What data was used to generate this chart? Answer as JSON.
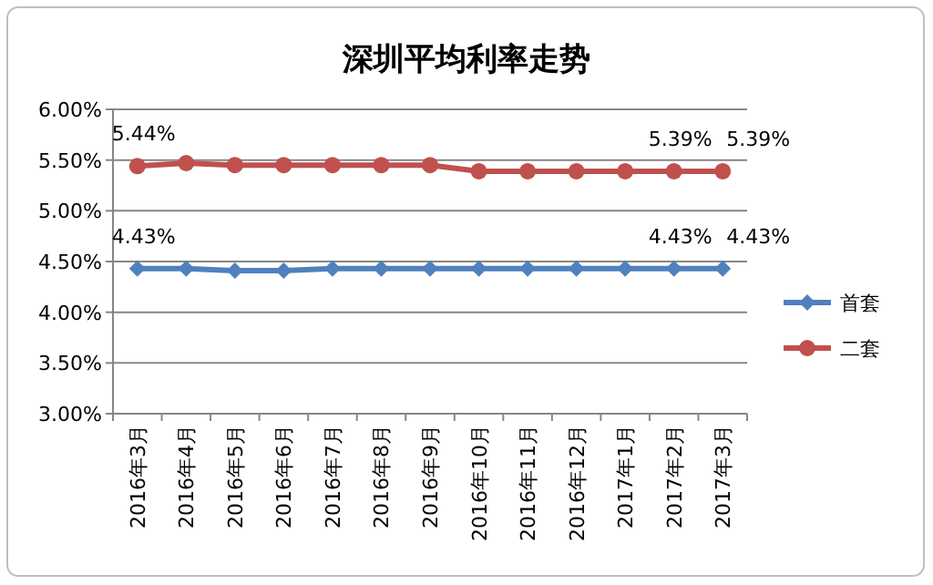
{
  "chart_data": {
    "type": "line",
    "title": "深圳平均利率走势",
    "categories": [
      "2016年3月",
      "2016年4月",
      "2016年5月",
      "2016年6月",
      "2016年7月",
      "2016年8月",
      "2016年9月",
      "2016年10月",
      "2016年11月",
      "2016年12月",
      "2017年1月",
      "2017年2月",
      "2017年3月"
    ],
    "series": [
      {
        "name": "首套",
        "color": "#4f81bd",
        "marker": "diamond",
        "values": [
          4.43,
          4.43,
          4.41,
          4.41,
          4.43,
          4.43,
          4.43,
          4.43,
          4.43,
          4.43,
          4.43,
          4.43,
          4.43
        ],
        "value_labels": [
          "4.43%",
          null,
          null,
          null,
          null,
          null,
          null,
          null,
          null,
          null,
          null,
          "4.43%",
          "4.43%"
        ]
      },
      {
        "name": "二套",
        "color": "#c0504d",
        "marker": "circle",
        "values": [
          5.44,
          5.47,
          5.45,
          5.45,
          5.45,
          5.45,
          5.45,
          5.39,
          5.39,
          5.39,
          5.39,
          5.39,
          5.39
        ],
        "value_labels": [
          "5.44%",
          null,
          null,
          null,
          null,
          null,
          null,
          null,
          null,
          null,
          null,
          "5.39%",
          "5.39%"
        ]
      }
    ],
    "ylim": [
      3.0,
      6.0
    ],
    "yticks": [
      {
        "value": 3.0,
        "label": "3.00%"
      },
      {
        "value": 3.5,
        "label": "3.50%"
      },
      {
        "value": 4.0,
        "label": "4.00%"
      },
      {
        "value": 4.5,
        "label": "4.50%"
      },
      {
        "value": 5.0,
        "label": "5.00%"
      },
      {
        "value": 5.5,
        "label": "5.50%"
      },
      {
        "value": 6.0,
        "label": "6.00%"
      }
    ],
    "grid": "y",
    "legend": "right"
  }
}
